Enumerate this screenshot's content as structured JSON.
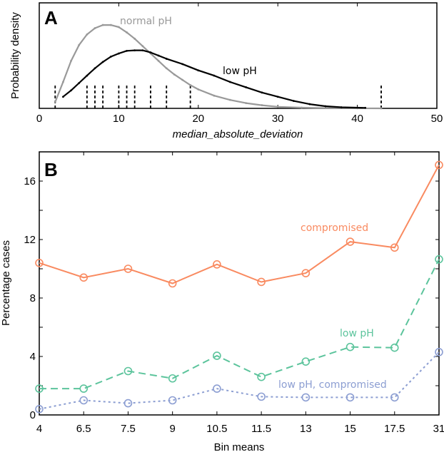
{
  "chart_data": [
    {
      "type": "line",
      "panel_label": "A",
      "xlabel": "median_absolute_deviation",
      "ylabel": "Probability density",
      "xlim": [
        0,
        50
      ],
      "xticks": [
        0,
        10,
        20,
        30,
        40,
        50
      ],
      "ylim": [
        0,
        1
      ],
      "grid": false,
      "series": [
        {
          "name": "normal pH",
          "color": "#999999",
          "x": [
            2,
            3,
            4,
            5,
            6,
            7,
            8,
            9,
            10,
            11,
            12,
            13,
            14,
            15,
            16,
            17,
            18,
            19,
            20,
            22,
            24,
            26,
            28,
            30,
            33,
            36,
            40,
            43
          ],
          "y": [
            0.06,
            0.25,
            0.45,
            0.6,
            0.7,
            0.76,
            0.79,
            0.79,
            0.77,
            0.72,
            0.66,
            0.59,
            0.52,
            0.45,
            0.38,
            0.32,
            0.27,
            0.22,
            0.18,
            0.12,
            0.08,
            0.05,
            0.03,
            0.015,
            0.007,
            0.003,
            0.001,
            0
          ]
        },
        {
          "name": "low pH",
          "color": "#000000",
          "x": [
            3,
            4,
            5,
            6,
            7,
            8,
            9,
            10,
            11,
            12,
            13,
            14,
            15,
            16,
            18,
            20,
            22,
            24,
            26,
            28,
            30,
            32,
            34,
            36,
            38,
            41
          ],
          "y": [
            0.11,
            0.17,
            0.24,
            0.31,
            0.38,
            0.44,
            0.49,
            0.52,
            0.545,
            0.55,
            0.55,
            0.53,
            0.5,
            0.47,
            0.42,
            0.36,
            0.31,
            0.25,
            0.2,
            0.15,
            0.11,
            0.07,
            0.04,
            0.02,
            0.01,
            0.005
          ]
        }
      ],
      "rug_ticks": [
        2,
        6,
        7,
        8,
        10,
        11,
        12,
        14,
        16,
        19,
        43
      ]
    },
    {
      "type": "line",
      "panel_label": "B",
      "xlabel": "Bin means",
      "ylabel": "Percentage cases",
      "categories": [
        "4",
        "6.5",
        "7.5",
        "9",
        "10.5",
        "11.5",
        "13",
        "15",
        "17.5",
        "31"
      ],
      "ylim": [
        0,
        18
      ],
      "yticks": [
        0,
        4,
        8,
        12,
        16
      ],
      "grid": false,
      "series": [
        {
          "name": "compromised",
          "color": "#f98a60",
          "dash": "solid",
          "values": [
            10.4,
            9.4,
            10.0,
            9.0,
            10.3,
            9.1,
            9.7,
            11.85,
            11.45,
            17.1
          ]
        },
        {
          "name": "low pH",
          "color": "#5cc49c",
          "dash": "dashed",
          "values": [
            1.8,
            1.8,
            3.0,
            2.5,
            4.05,
            2.6,
            3.65,
            4.65,
            4.6,
            10.65
          ]
        },
        {
          "name": "low pH, compromised",
          "color": "#8c9ed2",
          "dash": "dotted",
          "values": [
            0.4,
            1.0,
            0.8,
            1.0,
            1.8,
            1.25,
            1.2,
            1.2,
            1.2,
            4.3
          ]
        }
      ]
    }
  ]
}
